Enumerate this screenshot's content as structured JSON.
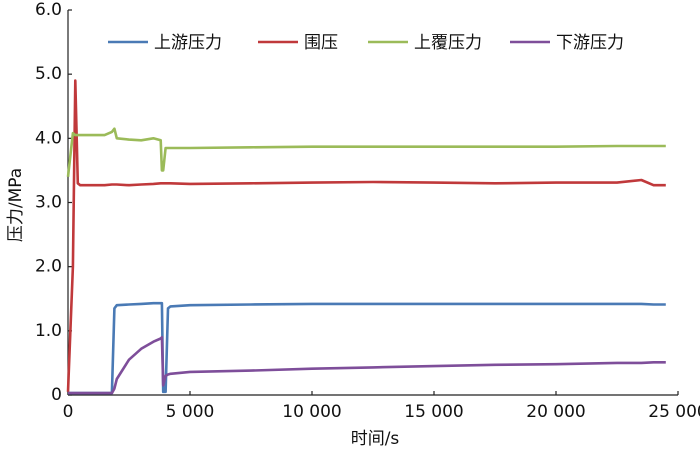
{
  "chart_data": {
    "type": "line",
    "x_label": "时间/s",
    "y_label": "压力/MPa",
    "x": [
      0,
      200,
      300,
      400,
      500,
      1500,
      1800,
      1900,
      2000,
      2500,
      3000,
      3500,
      3800,
      3850,
      3900,
      4000,
      4100,
      4200,
      5000,
      7500,
      10000,
      12500,
      15000,
      17500,
      20000,
      22500,
      23500,
      24000,
      24500
    ],
    "series": [
      {
        "name": "上游压力",
        "color": "#4a7ab5",
        "values": [
          0.03,
          0.03,
          0.03,
          0.03,
          0.03,
          0.03,
          0.03,
          1.35,
          1.4,
          1.41,
          1.42,
          1.43,
          1.43,
          1.43,
          0.05,
          0.05,
          1.35,
          1.38,
          1.4,
          1.41,
          1.42,
          1.42,
          1.42,
          1.42,
          1.42,
          1.42,
          1.42,
          1.41,
          1.41
        ]
      },
      {
        "name": "围压",
        "color": "#c0393b",
        "values": [
          0.05,
          2.0,
          4.9,
          3.3,
          3.27,
          3.27,
          3.28,
          3.28,
          3.28,
          3.27,
          3.28,
          3.29,
          3.3,
          3.3,
          3.3,
          3.3,
          3.3,
          3.3,
          3.29,
          3.3,
          3.31,
          3.32,
          3.31,
          3.3,
          3.31,
          3.31,
          3.35,
          3.27,
          3.27
        ]
      },
      {
        "name": "上覆压力",
        "color": "#9bbb59",
        "values": [
          3.4,
          4.08,
          4.05,
          4.05,
          4.05,
          4.05,
          4.1,
          4.15,
          4.0,
          3.98,
          3.97,
          4.0,
          3.97,
          3.5,
          3.5,
          3.85,
          3.85,
          3.85,
          3.85,
          3.86,
          3.87,
          3.87,
          3.87,
          3.87,
          3.87,
          3.88,
          3.88,
          3.88,
          3.88
        ]
      },
      {
        "name": "下游压力",
        "color": "#7e4e9a",
        "values": [
          0.03,
          0.03,
          0.03,
          0.03,
          0.03,
          0.03,
          0.03,
          0.1,
          0.25,
          0.55,
          0.72,
          0.83,
          0.88,
          0.9,
          0.15,
          0.3,
          0.32,
          0.33,
          0.36,
          0.38,
          0.41,
          0.43,
          0.45,
          0.47,
          0.48,
          0.5,
          0.5,
          0.51,
          0.51
        ]
      }
    ],
    "xlim": [
      0,
      25000
    ],
    "xticks": [
      0,
      {
        "value": 5000,
        "label": "5 000"
      },
      {
        "value": 10000,
        "label": "10 000"
      },
      {
        "value": 15000,
        "label": "15 000"
      },
      {
        "value": 20000,
        "label": "20 000"
      },
      {
        "value": 25000,
        "label": "25 000"
      }
    ],
    "ylim": [
      0,
      6
    ],
    "yticks": [
      0,
      {
        "value": 1,
        "label": "1.0"
      },
      {
        "value": 2,
        "label": "2.0"
      },
      {
        "value": 3,
        "label": "3.0"
      },
      {
        "value": 4,
        "label": "4.0"
      },
      {
        "value": 5,
        "label": "5.0"
      },
      {
        "value": 6,
        "label": "6.0"
      }
    ],
    "legend": "top",
    "grid": false
  }
}
